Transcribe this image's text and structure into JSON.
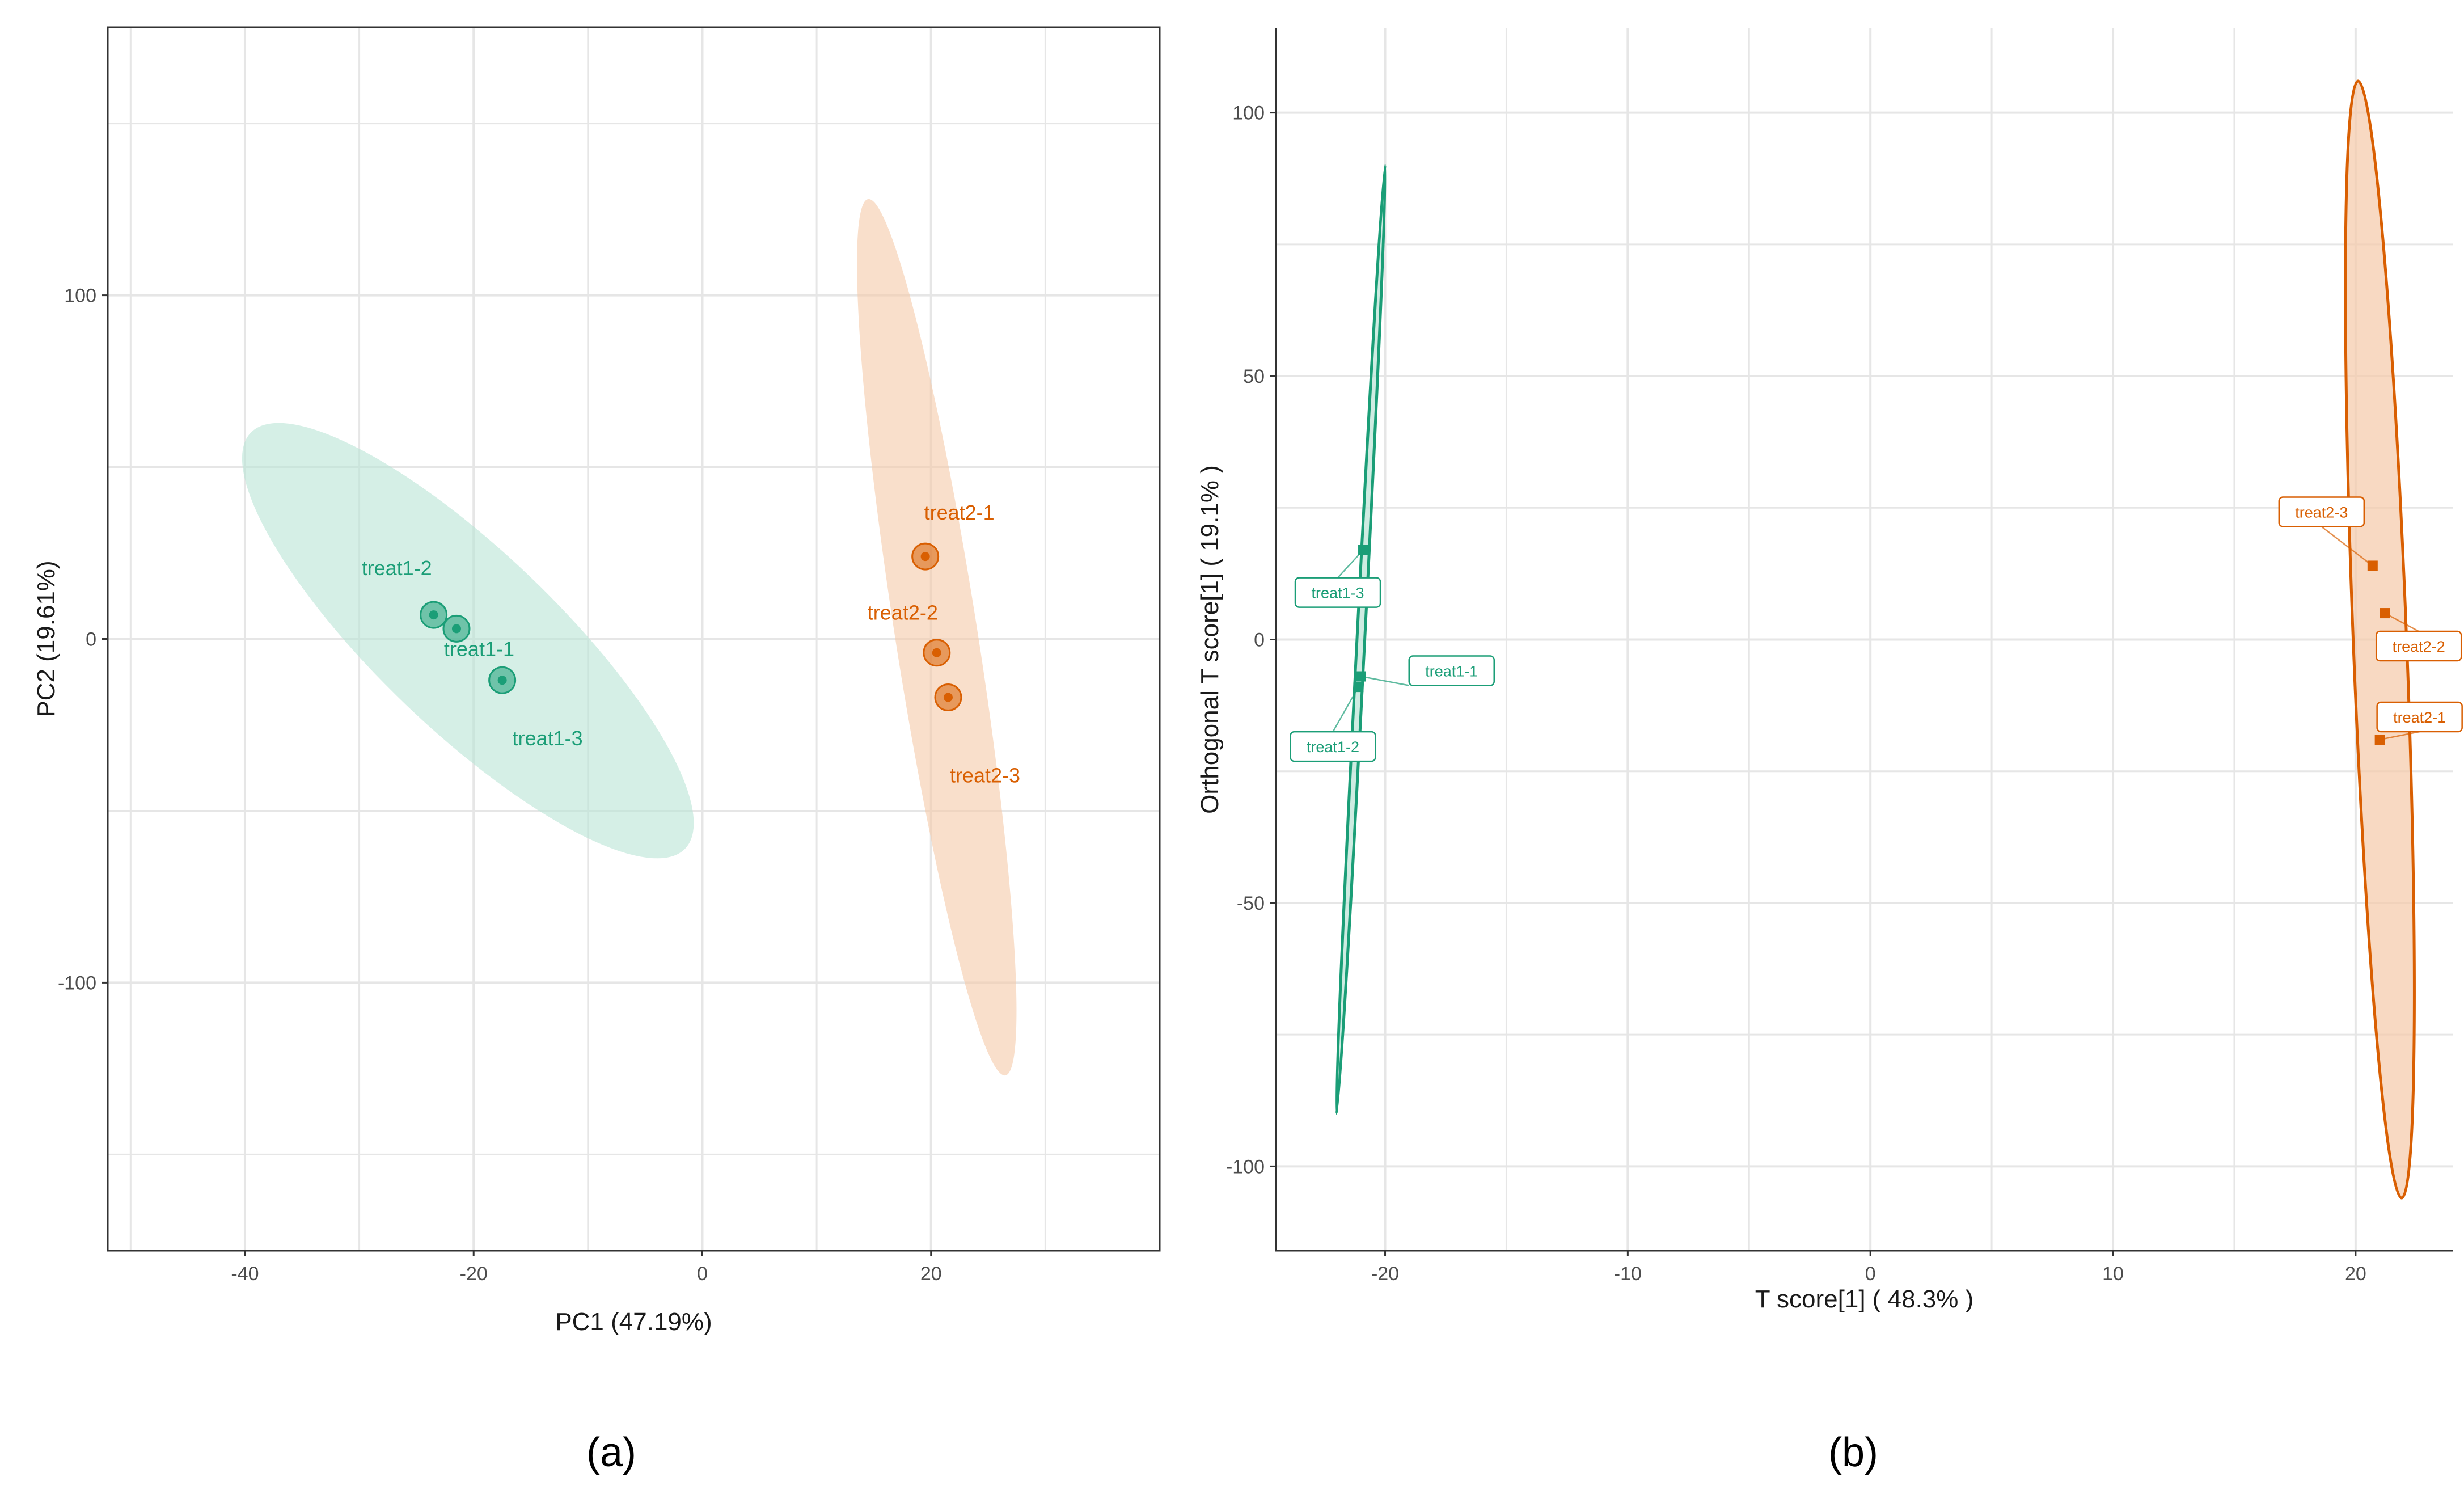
{
  "figure_captions": [
    "(a)",
    "(b)"
  ],
  "colors": {
    "treat1": "#1b9e77",
    "treat1_fill": "#b9e4d6",
    "treat2": "#d95f02",
    "treat2_fill": "#f5c9a8",
    "gridline": "#e6e6e6",
    "axis": "#333333"
  },
  "chart_data": [
    {
      "type": "scatter",
      "title": "",
      "caption": "(a)",
      "xlabel": "PC1 (47.19%)",
      "ylabel": "PC2 (19.61%)",
      "xlim": [
        -52,
        40
      ],
      "ylim": [
        -178,
        178
      ],
      "xticks": [
        -40,
        -20,
        0,
        20
      ],
      "yticks": [
        -100,
        0,
        100
      ],
      "grid": true,
      "series": [
        {
          "name": "treat1",
          "color": "#1b9e77",
          "fill": "#b9e4d6",
          "points": [
            {
              "label": "treat1-1",
              "x": -21.5,
              "y": 3
            },
            {
              "label": "treat1-2",
              "x": -23.5,
              "y": 7
            },
            {
              "label": "treat1-3",
              "x": -17.5,
              "y": -12
            }
          ],
          "ellipse": {
            "center": [
              -20.5,
              0
            ],
            "end_a": [
              -39.5,
              60
            ],
            "end_b": [
              -1.5,
              -61
            ],
            "half_width": 7.8
          }
        },
        {
          "name": "treat2",
          "color": "#d95f02",
          "fill": "#f5c9a8",
          "points": [
            {
              "label": "treat2-1",
              "x": 19.5,
              "y": 24
            },
            {
              "label": "treat2-2",
              "x": 20.5,
              "y": -4
            },
            {
              "label": "treat2-3",
              "x": 21.5,
              "y": -17
            }
          ],
          "ellipse": {
            "center": [
              20.5,
              1
            ],
            "end_a": [
              14.5,
              128
            ],
            "end_b": [
              26.5,
              -127
            ],
            "half_width": 3.6
          }
        }
      ]
    },
    {
      "type": "scatter",
      "title": "",
      "caption": "(b)",
      "xlabel": "T score[1] ( 48.3% )",
      "ylabel": "Orthogonal T score[1] ( 19.1% )",
      "xlim": [
        -24.5,
        24
      ],
      "ylim": [
        -116,
        116
      ],
      "xticks": [
        -20,
        -10,
        0,
        10,
        20
      ],
      "yticks": [
        -100,
        -50,
        0,
        50,
        100
      ],
      "grid": true,
      "series": [
        {
          "name": "treat1",
          "color": "#1b9e77",
          "fill": "#b9e4d6",
          "points": [
            {
              "label": "treat1-1",
              "x": -21.0,
              "y": -7
            },
            {
              "label": "treat1-2",
              "x": -21.1,
              "y": -9
            },
            {
              "label": "treat1-3",
              "x": -20.9,
              "y": 17
            }
          ],
          "ellipse": {
            "center": [
              -21.0,
              0
            ],
            "end_a": [
              -20.0,
              90
            ],
            "end_b": [
              -22.0,
              -90
            ],
            "half_width": 0.16
          }
        },
        {
          "name": "treat2",
          "color": "#d95f02",
          "fill": "#f5c9a8",
          "points": [
            {
              "label": "treat2-1",
              "x": 21.0,
              "y": -19
            },
            {
              "label": "treat2-2",
              "x": 21.2,
              "y": 5
            },
            {
              "label": "treat2-3",
              "x": 20.7,
              "y": 14
            }
          ],
          "ellipse": {
            "center": [
              21.0,
              0
            ],
            "end_a": [
              20.1,
              106
            ],
            "end_b": [
              21.9,
              -106
            ],
            "half_width": 1.1
          }
        }
      ]
    }
  ]
}
